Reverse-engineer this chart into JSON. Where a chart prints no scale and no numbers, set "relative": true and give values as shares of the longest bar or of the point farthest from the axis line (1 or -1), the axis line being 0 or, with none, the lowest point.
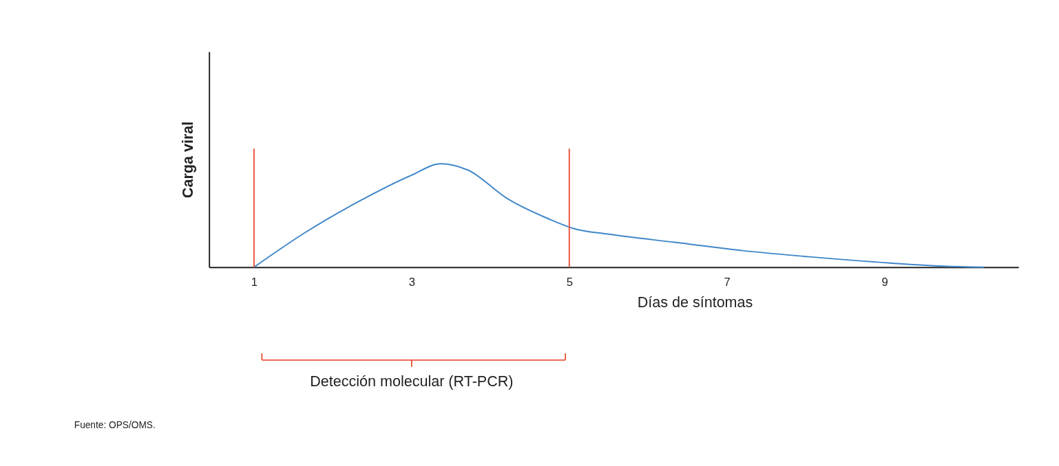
{
  "chart_data": {
    "type": "line",
    "relative": true,
    "xlabel": "Días de síntomas",
    "ylabel": "Carga viral",
    "xlim": [
      0.43,
      10.7
    ],
    "xticks": [
      1,
      3,
      5,
      7,
      9
    ],
    "grid": false,
    "marker": "none",
    "line_style": "solid",
    "series": [
      {
        "color": "#3f86c8",
        "x": [
          1.0,
          1.66,
          2.34,
          3.0,
          3.37,
          3.71,
          4.22,
          4.73,
          5.07,
          5.49,
          6.34,
          7.2,
          8.05,
          9.07,
          9.75,
          10.26
        ],
        "values": [
          0,
          0.34,
          0.64,
          0.89,
          1,
          0.94,
          0.66,
          0.47,
          0.37,
          0.32,
          0.24,
          0.16,
          0.1,
          0.04,
          0.01,
          0
        ]
      }
    ],
    "ref_lines": [
      {
        "axis": "x",
        "value": 1,
        "color": "#e8553f"
      },
      {
        "axis": "x",
        "value": 5,
        "color": "#e8553f"
      }
    ],
    "annotations": [
      "Detección molecular (RT-PCR)",
      "Fuente: OPS/OMS."
    ]
  }
}
